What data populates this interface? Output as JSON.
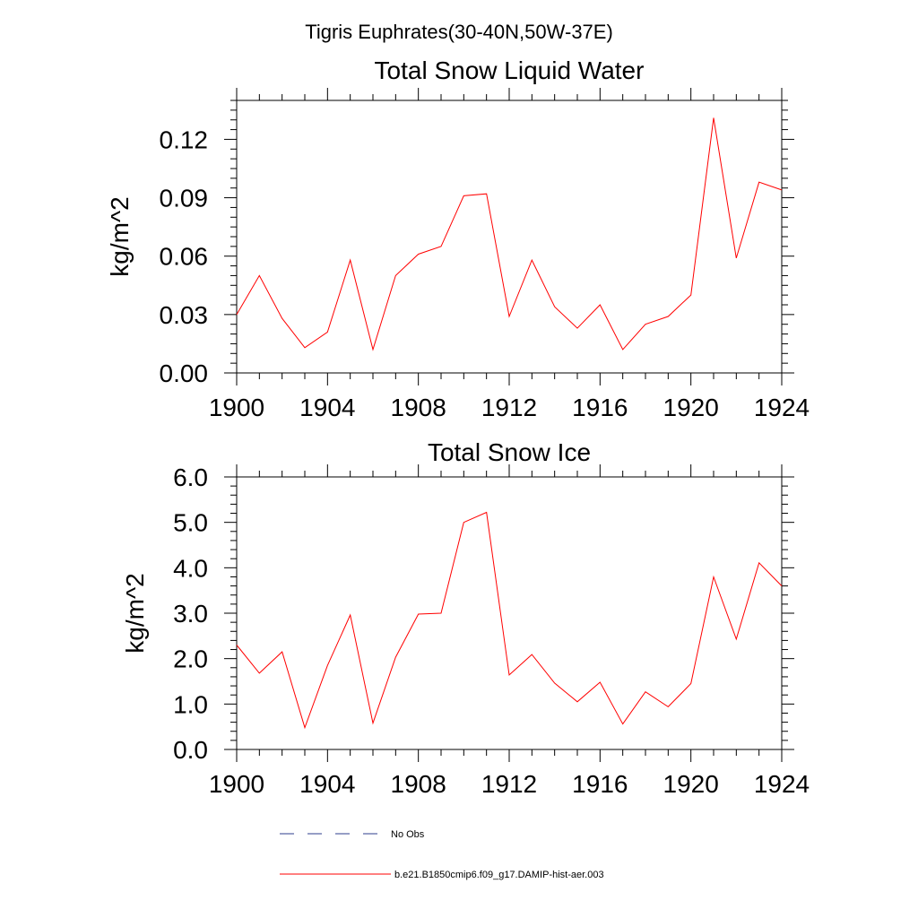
{
  "figure": {
    "main_title": "Tigris Euphrates(30-40N,50W-37E)"
  },
  "colors": {
    "series_line": "#ff0000",
    "no_obs_line": "#2c3c8c",
    "axis": "#000000"
  },
  "chart_data": [
    {
      "type": "line",
      "title": "Total Snow Liquid Water",
      "xlabel": "",
      "ylabel": "kg/m^2",
      "xlim": [
        1900,
        1924
      ],
      "ylim": [
        0.0,
        0.14
      ],
      "x_ticks": [
        "1900",
        "1904",
        "1908",
        "1912",
        "1916",
        "1920",
        "1924"
      ],
      "y_ticks": [
        "0.00",
        "0.03",
        "0.06",
        "0.09",
        "0.12"
      ],
      "grid": false,
      "series": [
        {
          "name": "b.e21.B1850cmip6.f09_g17.DAMIP-hist-aer.003",
          "x": [
            1900,
            1901,
            1902,
            1903,
            1904,
            1905,
            1906,
            1907,
            1908,
            1909,
            1910,
            1911,
            1912,
            1913,
            1914,
            1915,
            1916,
            1917,
            1918,
            1919,
            1920,
            1921,
            1922,
            1923,
            1924
          ],
          "values": [
            0.03,
            0.05,
            0.028,
            0.013,
            0.021,
            0.058,
            0.012,
            0.05,
            0.061,
            0.065,
            0.091,
            0.092,
            0.029,
            0.058,
            0.034,
            0.023,
            0.035,
            0.012,
            0.025,
            0.029,
            0.04,
            0.131,
            0.059,
            0.098,
            0.094
          ]
        }
      ]
    },
    {
      "type": "line",
      "title": "Total Snow Ice",
      "xlabel": "",
      "ylabel": "kg/m^2",
      "xlim": [
        1900,
        1924
      ],
      "ylim": [
        0.0,
        6.0
      ],
      "x_ticks": [
        "1900",
        "1904",
        "1908",
        "1912",
        "1916",
        "1920",
        "1924"
      ],
      "y_ticks": [
        "0.0",
        "1.0",
        "2.0",
        "3.0",
        "4.0",
        "5.0",
        "6.0"
      ],
      "grid": false,
      "series": [
        {
          "name": "b.e21.B1850cmip6.f09_g17.DAMIP-hist-aer.003",
          "x": [
            1900,
            1901,
            1902,
            1903,
            1904,
            1905,
            1906,
            1907,
            1908,
            1909,
            1910,
            1911,
            1912,
            1913,
            1914,
            1915,
            1916,
            1917,
            1918,
            1919,
            1920,
            1921,
            1922,
            1923,
            1924
          ],
          "values": [
            2.3,
            1.68,
            2.15,
            0.48,
            1.85,
            2.96,
            0.58,
            2.03,
            2.98,
            3.0,
            5.0,
            5.22,
            1.64,
            2.09,
            1.46,
            1.05,
            1.48,
            0.56,
            1.27,
            0.94,
            1.45,
            3.8,
            2.43,
            4.11,
            3.6
          ]
        }
      ]
    }
  ],
  "legend": {
    "items": [
      {
        "label": "No Obs",
        "style": "dashed"
      },
      {
        "label": "b.e21.B1850cmip6.f09_g17.DAMIP-hist-aer.003",
        "style": "solid"
      }
    ]
  }
}
